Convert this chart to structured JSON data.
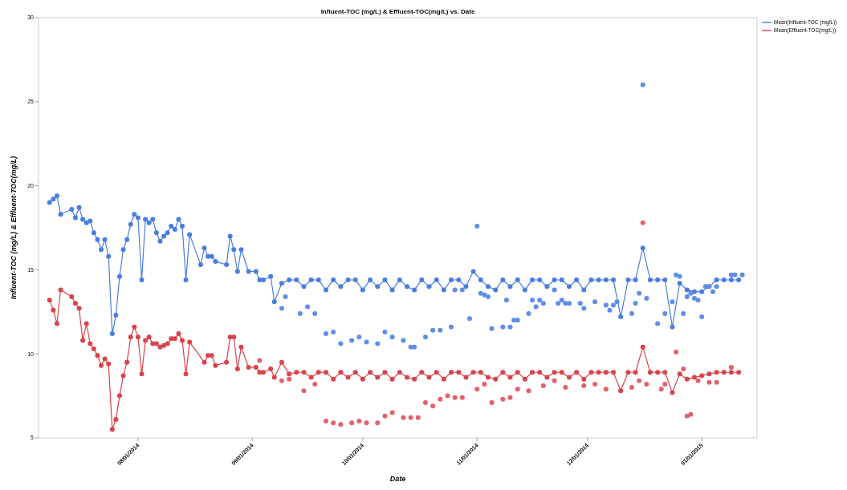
{
  "chart_data": {
    "type": "line",
    "title": "Influent-TOC (mg/L) & Effluent-TOC(mg/L) vs. Date",
    "xlabel": "Date",
    "ylabel": "Influent-TOC (mg/L) & Effluent-TOC(mg/L)",
    "xlim": [
      "2014-07-05",
      "2015-01-16"
    ],
    "ylim": [
      5,
      30
    ],
    "yticks": [
      5,
      10,
      15,
      20,
      25,
      30
    ],
    "xticks": [
      {
        "value": "2014-08-01",
        "label": "08/01/2014"
      },
      {
        "value": "2014-09-01",
        "label": "09/01/2014"
      },
      {
        "value": "2014-10-01",
        "label": "10/01/2014"
      },
      {
        "value": "2014-11-01",
        "label": "11/01/2014"
      },
      {
        "value": "2014-12-01",
        "label": "12/01/2014"
      },
      {
        "value": "2015-01-01",
        "label": "01/01/2015"
      }
    ],
    "grid": false,
    "legend": "top right",
    "marker": "circle",
    "line_style": "solid",
    "series": [
      {
        "name": "Mean(Influent-TOC (mg/L))",
        "color": "#4a7de0",
        "x": [
          "2014-07-08",
          "2014-07-09",
          "2014-07-10",
          "2014-07-11",
          "2014-07-14",
          "2014-07-15",
          "2014-07-16",
          "2014-07-17",
          "2014-07-18",
          "2014-07-19",
          "2014-07-20",
          "2014-07-21",
          "2014-07-22",
          "2014-07-23",
          "2014-07-24",
          "2014-07-25",
          "2014-07-26",
          "2014-07-27",
          "2014-07-28",
          "2014-07-29",
          "2014-07-30",
          "2014-07-31",
          "2014-08-01",
          "2014-08-02",
          "2014-08-03",
          "2014-08-04",
          "2014-08-05",
          "2014-08-06",
          "2014-08-07",
          "2014-08-08",
          "2014-08-09",
          "2014-08-10",
          "2014-08-11",
          "2014-08-12",
          "2014-08-13",
          "2014-08-14",
          "2014-08-15",
          "2014-08-18",
          "2014-08-19",
          "2014-08-20",
          "2014-08-21",
          "2014-08-22",
          "2014-08-25",
          "2014-08-26",
          "2014-08-27",
          "2014-08-28",
          "2014-08-29",
          "2014-08-31",
          "2014-09-02",
          "2014-09-03",
          "2014-09-04",
          "2014-09-06",
          "2014-09-07",
          "2014-09-09",
          "2014-09-11",
          "2014-09-13",
          "2014-09-15",
          "2014-09-17",
          "2014-09-19",
          "2014-09-21",
          "2014-09-23",
          "2014-09-25",
          "2014-09-27",
          "2014-09-29",
          "2014-10-01",
          "2014-10-03",
          "2014-10-05",
          "2014-10-07",
          "2014-10-09",
          "2014-10-11",
          "2014-10-13",
          "2014-10-15",
          "2014-10-17",
          "2014-10-19",
          "2014-10-21",
          "2014-10-23",
          "2014-10-25",
          "2014-10-27",
          "2014-10-29",
          "2014-10-31",
          "2014-11-02",
          "2014-11-04",
          "2014-11-06",
          "2014-11-08",
          "2014-11-10",
          "2014-11-12",
          "2014-11-14",
          "2014-11-16",
          "2014-11-18",
          "2014-11-20",
          "2014-11-22",
          "2014-11-24",
          "2014-11-26",
          "2014-11-28",
          "2014-11-30",
          "2014-12-02",
          "2014-12-04",
          "2014-12-06",
          "2014-12-08",
          "2014-12-10",
          "2014-12-12",
          "2014-12-14",
          "2014-12-16",
          "2014-12-18",
          "2014-12-20",
          "2014-12-22",
          "2014-12-24",
          "2014-12-26",
          "2014-12-28",
          "2014-12-30",
          "2015-01-01",
          "2015-01-03",
          "2015-01-05",
          "2015-01-07",
          "2015-01-09",
          "2015-01-11"
        ],
        "values": [
          19.0,
          19.2,
          19.4,
          18.3,
          18.6,
          18.1,
          18.7,
          18.0,
          17.8,
          17.9,
          17.2,
          16.8,
          16.2,
          16.8,
          15.8,
          11.2,
          12.3,
          14.6,
          16.2,
          16.8,
          17.7,
          18.3,
          18.1,
          14.4,
          18.0,
          17.8,
          18.0,
          17.2,
          16.7,
          17.0,
          17.2,
          17.6,
          17.4,
          18.0,
          17.6,
          14.4,
          17.1,
          15.3,
          16.3,
          15.8,
          15.8,
          15.5,
          15.3,
          17.0,
          16.2,
          14.9,
          16.2,
          14.9,
          14.9,
          14.4,
          14.4,
          14.6,
          13.1,
          14.2,
          14.4,
          14.4,
          14.0,
          14.4,
          14.4,
          13.8,
          14.4,
          14.0,
          14.4,
          14.4,
          13.8,
          14.4,
          14.0,
          14.4,
          13.8,
          14.4,
          14.0,
          13.8,
          14.4,
          14.0,
          14.4,
          13.8,
          14.4,
          14.4,
          14.0,
          14.9,
          14.4,
          14.0,
          13.8,
          14.4,
          14.0,
          14.4,
          13.8,
          14.4,
          14.4,
          14.0,
          14.4,
          14.4,
          14.0,
          14.4,
          13.8,
          14.4,
          14.4,
          14.4,
          14.4,
          12.2,
          14.4,
          14.4,
          16.3,
          14.4,
          14.4,
          14.4,
          11.6,
          14.2,
          13.8,
          13.7,
          13.7,
          14.0,
          14.4,
          14.4,
          14.4,
          14.4
        ]
      },
      {
        "name": "Mean(Effluent-TOC(mg/L))",
        "color": "#d9434b",
        "x": [
          "2014-07-08",
          "2014-07-09",
          "2014-07-10",
          "2014-07-11",
          "2014-07-14",
          "2014-07-15",
          "2014-07-16",
          "2014-07-17",
          "2014-07-18",
          "2014-07-19",
          "2014-07-20",
          "2014-07-21",
          "2014-07-22",
          "2014-07-23",
          "2014-07-24",
          "2014-07-25",
          "2014-07-26",
          "2014-07-27",
          "2014-07-28",
          "2014-07-29",
          "2014-07-30",
          "2014-07-31",
          "2014-08-01",
          "2014-08-02",
          "2014-08-03",
          "2014-08-04",
          "2014-08-05",
          "2014-08-06",
          "2014-08-07",
          "2014-08-08",
          "2014-08-09",
          "2014-08-10",
          "2014-08-11",
          "2014-08-12",
          "2014-08-13",
          "2014-08-14",
          "2014-08-15",
          "2014-08-19",
          "2014-08-20",
          "2014-08-21",
          "2014-08-22",
          "2014-08-25",
          "2014-08-26",
          "2014-08-27",
          "2014-08-28",
          "2014-08-29",
          "2014-08-31",
          "2014-09-02",
          "2014-09-03",
          "2014-09-04",
          "2014-09-06",
          "2014-09-07",
          "2014-09-09",
          "2014-09-11",
          "2014-09-13",
          "2014-09-15",
          "2014-09-17",
          "2014-09-19",
          "2014-09-21",
          "2014-09-23",
          "2014-09-25",
          "2014-09-27",
          "2014-09-29",
          "2014-10-01",
          "2014-10-03",
          "2014-10-05",
          "2014-10-07",
          "2014-10-09",
          "2014-10-11",
          "2014-10-13",
          "2014-10-15",
          "2014-10-17",
          "2014-10-19",
          "2014-10-21",
          "2014-10-23",
          "2014-10-25",
          "2014-10-27",
          "2014-10-29",
          "2014-10-31",
          "2014-11-02",
          "2014-11-04",
          "2014-11-06",
          "2014-11-08",
          "2014-11-10",
          "2014-11-12",
          "2014-11-14",
          "2014-11-16",
          "2014-11-18",
          "2014-11-20",
          "2014-11-22",
          "2014-11-24",
          "2014-11-26",
          "2014-11-28",
          "2014-11-30",
          "2014-12-02",
          "2014-12-04",
          "2014-12-06",
          "2014-12-08",
          "2014-12-10",
          "2014-12-12",
          "2014-12-14",
          "2014-12-16",
          "2014-12-18",
          "2014-12-20",
          "2014-12-22",
          "2014-12-24",
          "2014-12-26",
          "2014-12-28",
          "2014-12-30",
          "2015-01-01",
          "2015-01-03",
          "2015-01-05",
          "2015-01-07",
          "2015-01-09",
          "2015-01-11"
        ],
        "values": [
          13.2,
          12.6,
          11.8,
          13.8,
          13.4,
          13.0,
          12.7,
          10.8,
          11.8,
          10.6,
          10.3,
          9.9,
          9.3,
          9.7,
          9.4,
          5.5,
          6.1,
          7.5,
          8.7,
          9.5,
          11.0,
          11.6,
          11.0,
          8.8,
          10.8,
          11.0,
          10.6,
          10.6,
          10.4,
          10.5,
          10.6,
          10.9,
          10.9,
          11.2,
          10.8,
          8.8,
          10.7,
          9.5,
          9.9,
          9.9,
          9.3,
          9.5,
          11.0,
          11.0,
          9.1,
          10.4,
          9.2,
          9.2,
          8.9,
          8.9,
          9.1,
          8.6,
          9.5,
          8.8,
          8.9,
          8.9,
          8.6,
          8.9,
          8.9,
          8.5,
          8.9,
          8.6,
          8.9,
          8.5,
          8.9,
          8.6,
          8.9,
          8.5,
          8.9,
          8.6,
          8.5,
          8.9,
          8.6,
          8.9,
          8.5,
          8.9,
          8.9,
          8.6,
          8.9,
          8.9,
          8.6,
          8.5,
          8.9,
          8.6,
          8.9,
          8.5,
          8.9,
          8.9,
          8.6,
          8.9,
          8.9,
          8.6,
          8.9,
          8.5,
          8.9,
          8.9,
          8.9,
          8.9,
          7.8,
          8.9,
          8.9,
          10.4,
          8.9,
          8.9,
          8.9,
          7.7,
          8.8,
          8.5,
          8.6,
          8.7,
          8.8,
          8.9,
          8.9,
          8.9,
          8.9
        ]
      },
      {
        "type": "scatter",
        "color": "#5f8ee8",
        "x": [
          "2014-09-09",
          "2014-09-10",
          "2014-09-14",
          "2014-09-16",
          "2014-09-18",
          "2014-09-21",
          "2014-09-23",
          "2014-09-25",
          "2014-09-28",
          "2014-09-30",
          "2014-10-02",
          "2014-10-05",
          "2014-10-07",
          "2014-10-09",
          "2014-10-12",
          "2014-10-14",
          "2014-10-15",
          "2014-10-18",
          "2014-10-20",
          "2014-10-22",
          "2014-10-25",
          "2014-10-26",
          "2014-10-28",
          "2014-10-30",
          "2014-11-01",
          "2014-11-02",
          "2014-11-03",
          "2014-11-04",
          "2014-11-05",
          "2014-11-08",
          "2014-11-09",
          "2014-11-10",
          "2014-11-11",
          "2014-11-12",
          "2014-11-15",
          "2014-11-16",
          "2014-11-17",
          "2014-11-18",
          "2014-11-19",
          "2014-11-22",
          "2014-11-23",
          "2014-11-24",
          "2014-11-25",
          "2014-11-26",
          "2014-11-29",
          "2014-11-30",
          "2014-12-03",
          "2014-12-06",
          "2014-12-07",
          "2014-12-08",
          "2014-12-09",
          "2014-12-13",
          "2014-12-14",
          "2014-12-15",
          "2014-12-16",
          "2014-12-17",
          "2014-12-20",
          "2014-12-22",
          "2014-12-24",
          "2014-12-25",
          "2014-12-26",
          "2014-12-27",
          "2014-12-28",
          "2014-12-29",
          "2014-12-30",
          "2014-12-31",
          "2015-01-01",
          "2015-01-02",
          "2015-01-03",
          "2015-01-04",
          "2015-01-05",
          "2015-01-09",
          "2015-01-10",
          "2015-01-12"
        ],
        "values": [
          12.7,
          13.4,
          12.4,
          12.8,
          12.4,
          11.2,
          11.3,
          10.6,
          10.8,
          11.0,
          10.7,
          10.6,
          11.3,
          11.0,
          10.8,
          10.4,
          10.4,
          11.0,
          11.4,
          11.4,
          11.6,
          13.8,
          13.8,
          12.1,
          17.6,
          13.6,
          13.5,
          13.4,
          11.5,
          11.6,
          13.2,
          11.6,
          12.0,
          12.0,
          12.4,
          13.2,
          12.8,
          13.2,
          13.0,
          13.8,
          13.0,
          13.2,
          13.0,
          13.0,
          13.0,
          12.7,
          13.1,
          12.9,
          12.6,
          12.9,
          13.1,
          12.4,
          13.0,
          13.6,
          26.0,
          13.3,
          11.8,
          12.4,
          13.1,
          14.7,
          14.6,
          12.4,
          13.4,
          13.6,
          13.3,
          13.2,
          12.2,
          14.0,
          14.0,
          13.7,
          14.0,
          14.7,
          14.7,
          14.7
        ]
      },
      {
        "type": "scatter",
        "color": "#e2616a",
        "x": [
          "2014-09-03",
          "2014-09-09",
          "2014-09-11",
          "2014-09-15",
          "2014-09-18",
          "2014-09-21",
          "2014-09-23",
          "2014-09-25",
          "2014-09-28",
          "2014-09-30",
          "2014-10-02",
          "2014-10-05",
          "2014-10-07",
          "2014-10-09",
          "2014-10-12",
          "2014-10-14",
          "2014-10-16",
          "2014-10-18",
          "2014-10-20",
          "2014-10-22",
          "2014-10-24",
          "2014-10-26",
          "2014-10-28",
          "2014-11-01",
          "2014-11-03",
          "2014-11-05",
          "2014-11-08",
          "2014-11-10",
          "2014-11-12",
          "2014-11-15",
          "2014-11-19",
          "2014-11-22",
          "2014-11-25",
          "2014-11-30",
          "2014-12-03",
          "2014-12-06",
          "2014-12-13",
          "2014-12-15",
          "2014-12-16",
          "2014-12-17",
          "2014-12-21",
          "2014-12-22",
          "2014-12-25",
          "2014-12-27",
          "2014-12-28",
          "2014-12-29",
          "2014-12-31",
          "2015-01-03",
          "2015-01-05",
          "2015-01-09"
        ],
        "values": [
          9.6,
          8.4,
          8.5,
          7.8,
          8.2,
          6.0,
          5.9,
          5.8,
          5.9,
          6.0,
          5.9,
          5.9,
          6.3,
          6.5,
          6.2,
          6.2,
          6.2,
          7.1,
          6.9,
          7.3,
          7.5,
          7.4,
          7.4,
          7.9,
          8.2,
          7.1,
          7.3,
          7.4,
          7.9,
          7.8,
          8.1,
          8.4,
          8.0,
          8.1,
          8.2,
          7.9,
          8.0,
          8.4,
          17.8,
          8.2,
          7.9,
          8.2,
          10.1,
          9.1,
          6.3,
          6.4,
          8.4,
          8.3,
          8.3,
          9.2
        ]
      }
    ]
  }
}
